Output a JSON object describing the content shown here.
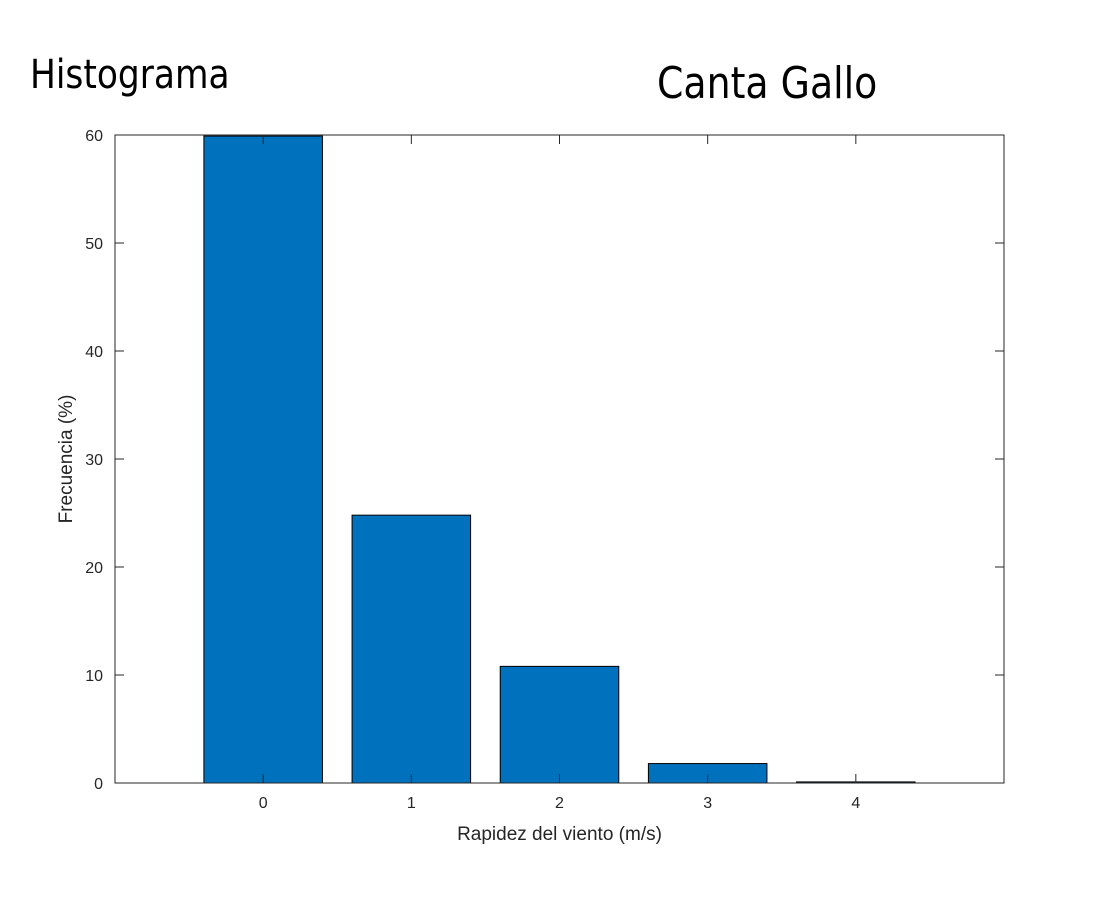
{
  "titles": {
    "left": "Histograma",
    "right": "Canta Gallo"
  },
  "colors": {
    "bar_fill": "#0072BD",
    "bar_stroke": "#000000",
    "axis": "#262626"
  },
  "chart_data": {
    "type": "bar",
    "categories": [
      "0",
      "1",
      "2",
      "3",
      "4"
    ],
    "x": [
      0,
      1,
      2,
      3,
      4
    ],
    "values": [
      59.9,
      24.8,
      10.8,
      1.8,
      0.1
    ],
    "xlabel": "Rapidez del viento (m/s)",
    "ylabel": "Frecuencia (%)",
    "xlim": [
      -1,
      5
    ],
    "ylim": [
      0,
      60
    ],
    "yticks": [
      0,
      10,
      20,
      30,
      40,
      50,
      60
    ],
    "xticks": [
      0,
      1,
      2,
      3,
      4
    ],
    "bar_width": 0.8,
    "grid": false,
    "legend": "none"
  }
}
